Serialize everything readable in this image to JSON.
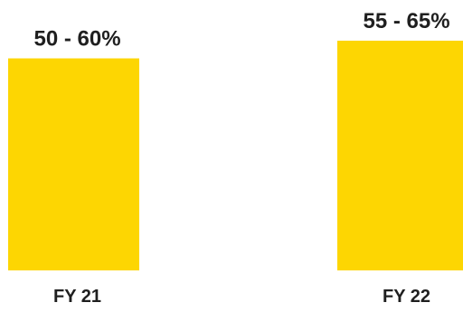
{
  "chart_data": {
    "type": "bar",
    "title": "",
    "xlabel": "",
    "ylabel": "",
    "categories": [
      "FY 21",
      "FY 22"
    ],
    "range_low": [
      50,
      55
    ],
    "range_high": [
      60,
      65
    ],
    "value_labels": [
      "50 - 60%",
      "55 - 65%"
    ],
    "unit": "%",
    "ylim": [
      0,
      65
    ],
    "grid": false,
    "legend": "none",
    "bar_color": "#FDD602",
    "text_color": "#1F1F1F"
  }
}
